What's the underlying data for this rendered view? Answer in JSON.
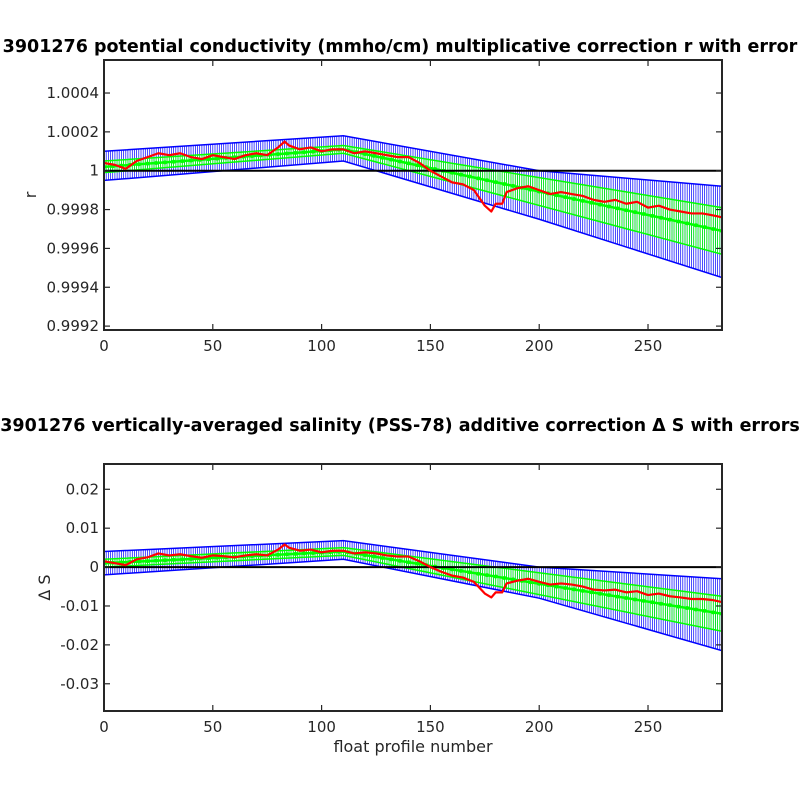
{
  "chart_data": [
    {
      "type": "line",
      "title": "3901276 potential conductivity (mmho/cm) multiplicative correction r with error",
      "xlabel": "",
      "ylabel": "r",
      "xlim": [
        0,
        284
      ],
      "ylim": [
        0.99918,
        1.00057
      ],
      "xticks": [
        0,
        50,
        100,
        150,
        200,
        250
      ],
      "xtick_labels": [
        "0",
        "50",
        "100",
        "150",
        "200",
        "250"
      ],
      "yticks": [
        0.9992,
        0.9994,
        0.9996,
        0.9998,
        1,
        1.0002,
        1.0004
      ],
      "ytick_labels": [
        "0.9992",
        "0.9994",
        "0.9996",
        "0.9998",
        "1",
        "1.0002",
        "1.0004"
      ],
      "reference_line": 1,
      "grid": false,
      "colors": {
        "error_bars": "#0000ff",
        "fit": "#00ff00",
        "correction": "#ff0000",
        "reference": "#000000"
      },
      "series": [
        {
          "role": "error_band_upper",
          "x": [
            0,
            110,
            200,
            284
          ],
          "y": [
            1.0001,
            1.00018,
            1.0,
            0.99992
          ]
        },
        {
          "role": "error_band_lower",
          "x": [
            0,
            110,
            200,
            284
          ],
          "y": [
            0.99995,
            1.00005,
            0.99975,
            0.99945
          ]
        },
        {
          "role": "fit",
          "x": [
            0,
            110,
            284
          ],
          "y": [
            1.00002,
            1.00011,
            0.99969
          ]
        },
        {
          "role": "fit_upper",
          "x": [
            0,
            110,
            284
          ],
          "y": [
            1.00005,
            1.00013,
            0.99981
          ]
        },
        {
          "role": "fit_lower",
          "x": [
            0,
            110,
            284
          ],
          "y": [
            0.99999,
            1.00009,
            0.99957
          ]
        },
        {
          "role": "correction",
          "x": [
            0,
            5,
            10,
            15,
            20,
            25,
            30,
            35,
            40,
            45,
            50,
            55,
            60,
            65,
            70,
            75,
            80,
            83,
            85,
            90,
            95,
            100,
            105,
            110,
            115,
            120,
            125,
            130,
            135,
            140,
            145,
            150,
            155,
            160,
            165,
            170,
            175,
            178,
            180,
            183,
            185,
            190,
            195,
            200,
            205,
            210,
            215,
            220,
            225,
            230,
            235,
            240,
            245,
            250,
            255,
            260,
            265,
            270,
            275,
            280,
            284
          ],
          "y": [
            1.00004,
            1.00003,
            1.00001,
            1.00005,
            1.00007,
            1.00009,
            1.00008,
            1.00009,
            1.00007,
            1.00006,
            1.00008,
            1.00007,
            1.00006,
            1.00008,
            1.00009,
            1.00008,
            1.00012,
            1.00015,
            1.00013,
            1.00011,
            1.00012,
            1.0001,
            1.00011,
            1.00011,
            1.00009,
            1.0001,
            1.00009,
            1.00008,
            1.00007,
            1.00007,
            1.00004,
            1.0,
            0.99997,
            0.99994,
            0.99993,
            0.9999,
            0.99982,
            0.99979,
            0.99983,
            0.99983,
            0.99989,
            0.99991,
            0.99992,
            0.9999,
            0.99988,
            0.99989,
            0.99988,
            0.99987,
            0.99985,
            0.99984,
            0.99985,
            0.99983,
            0.99984,
            0.99981,
            0.99982,
            0.9998,
            0.99979,
            0.99978,
            0.99978,
            0.99977,
            0.99976
          ]
        }
      ]
    },
    {
      "type": "line",
      "title": "3901276 vertically-averaged salinity (PSS-78) additive correction Δ S with errors",
      "xlabel": "float profile number",
      "ylabel": "Δ S",
      "xlim": [
        0,
        284
      ],
      "ylim": [
        -0.037,
        0.0265
      ],
      "xticks": [
        0,
        50,
        100,
        150,
        200,
        250
      ],
      "xtick_labels": [
        "0",
        "50",
        "100",
        "150",
        "200",
        "250"
      ],
      "yticks": [
        -0.03,
        -0.02,
        -0.01,
        0,
        0.01,
        0.02
      ],
      "ytick_labels": [
        "-0.03",
        "-0.02",
        "-0.01",
        "0",
        "0.01",
        "0.02"
      ],
      "reference_line": 0,
      "grid": false,
      "colors": {
        "error_bars": "#0000ff",
        "fit": "#00ff00",
        "correction": "#ff0000",
        "reference": "#000000"
      },
      "series": [
        {
          "role": "error_band_upper",
          "x": [
            0,
            110,
            200,
            284
          ],
          "y": [
            0.004,
            0.0068,
            0.0,
            -0.003
          ]
        },
        {
          "role": "error_band_lower",
          "x": [
            0,
            110,
            200,
            284
          ],
          "y": [
            -0.002,
            0.002,
            -0.008,
            -0.0215
          ]
        },
        {
          "role": "fit",
          "x": [
            0,
            110,
            284
          ],
          "y": [
            0.001,
            0.004,
            -0.012
          ]
        },
        {
          "role": "fit_upper",
          "x": [
            0,
            110,
            284
          ],
          "y": [
            0.002,
            0.005,
            -0.0075
          ]
        },
        {
          "role": "fit_lower",
          "x": [
            0,
            110,
            284
          ],
          "y": [
            0.0,
            0.003,
            -0.0165
          ]
        },
        {
          "role": "correction",
          "x": [
            0,
            5,
            10,
            15,
            20,
            25,
            30,
            35,
            40,
            45,
            50,
            55,
            60,
            65,
            70,
            75,
            80,
            83,
            85,
            90,
            95,
            100,
            105,
            110,
            115,
            120,
            125,
            130,
            135,
            140,
            145,
            150,
            155,
            160,
            165,
            170,
            175,
            178,
            180,
            183,
            185,
            190,
            195,
            200,
            205,
            210,
            215,
            220,
            225,
            230,
            235,
            240,
            245,
            250,
            255,
            260,
            265,
            270,
            275,
            280,
            284
          ],
          "y": [
            0.0015,
            0.001,
            0.0005,
            0.002,
            0.0025,
            0.0035,
            0.003,
            0.0033,
            0.0028,
            0.0024,
            0.003,
            0.0028,
            0.0025,
            0.003,
            0.0033,
            0.003,
            0.0045,
            0.0058,
            0.005,
            0.0042,
            0.0045,
            0.0038,
            0.0042,
            0.0042,
            0.0035,
            0.0038,
            0.0035,
            0.003,
            0.0027,
            0.0027,
            0.0015,
            0.0,
            -0.0012,
            -0.0022,
            -0.0027,
            -0.0038,
            -0.0068,
            -0.0078,
            -0.0065,
            -0.0065,
            -0.0042,
            -0.0035,
            -0.003,
            -0.0038,
            -0.0045,
            -0.0042,
            -0.0045,
            -0.005,
            -0.0058,
            -0.006,
            -0.0058,
            -0.0065,
            -0.0062,
            -0.0072,
            -0.0068,
            -0.0075,
            -0.0078,
            -0.0082,
            -0.0082,
            -0.0085,
            -0.009
          ]
        }
      ]
    }
  ]
}
